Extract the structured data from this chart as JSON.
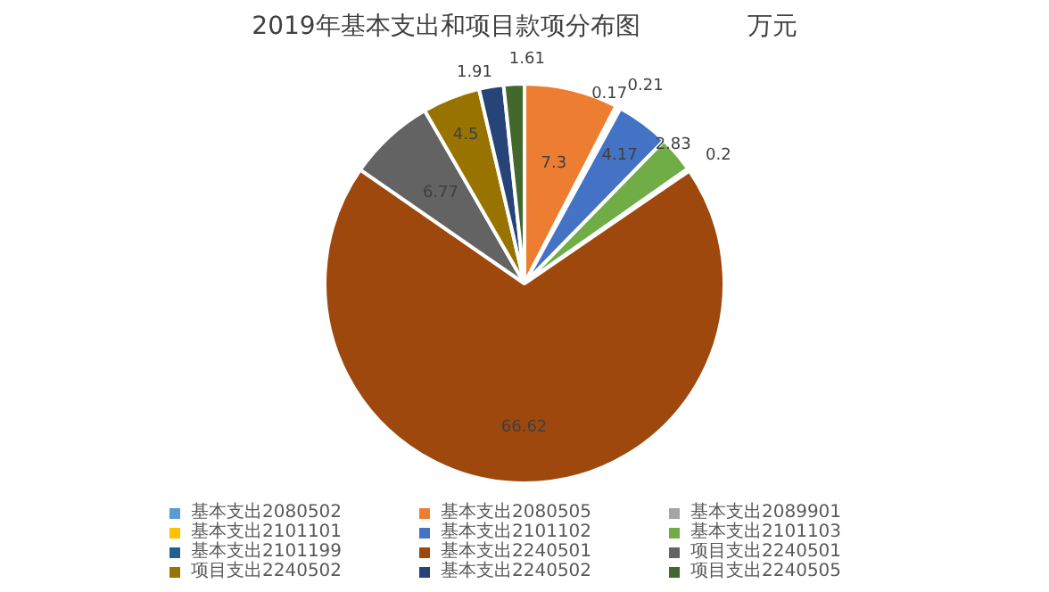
{
  "chart_data": {
    "type": "pie",
    "title": "2019年基本支出和项目款项分布图",
    "subtitle": "万元",
    "categories": [
      "基本支出2080502",
      "基本支出2080505",
      "基本支出2089901",
      "基本支出2101101",
      "基本支出2101102",
      "基本支出2101103",
      "基本支出2101199",
      "基本支出2240501",
      "项目支出2240501",
      "项目支出2240502",
      "基本支出2240502",
      "项目支出2240505"
    ],
    "values": [
      0,
      7.3,
      0.17,
      0.21,
      4.17,
      2.83,
      0.2,
      66.62,
      6.77,
      4.5,
      1.91,
      1.61
    ],
    "value_labels": [
      null,
      "7.3",
      "0.17",
      "0.21",
      "4.17",
      "2.83",
      "0.2",
      "66.62",
      "6.77",
      "4.5",
      "1.91",
      "1.61"
    ],
    "colors": [
      "#5b9bd5",
      "#ed7d31",
      "#a5a5a5",
      "#ffc000",
      "#4472c4",
      "#70ad47",
      "#255e91",
      "#9e480e",
      "#636363",
      "#997300",
      "#264478",
      "#43682b"
    ],
    "legend": "bottom"
  }
}
